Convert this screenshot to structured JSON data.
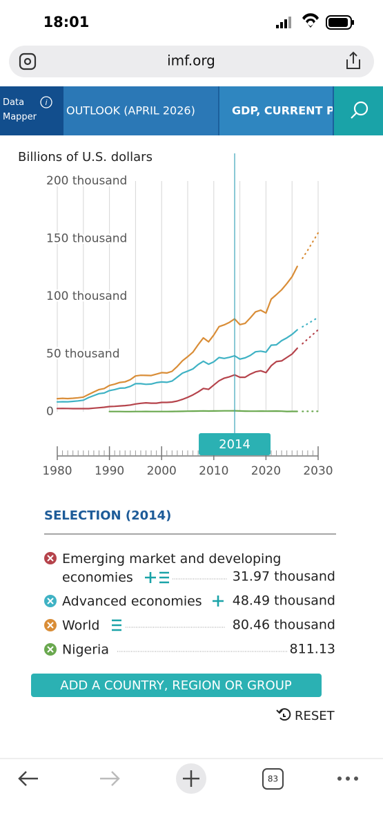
{
  "status_bar": {
    "time": "18:01"
  },
  "browser": {
    "url": "imf.org",
    "tab_count": 83
  },
  "nav": {
    "brand": "Data Mapper",
    "tabs": [
      "OUTLOOK (APRIL 2026)",
      "GDP, CURRENT P"
    ]
  },
  "chart_data": {
    "type": "line",
    "y_label": "Billions of U.S. dollars",
    "x": [
      1980,
      1981,
      1982,
      1983,
      1984,
      1985,
      1986,
      1987,
      1988,
      1989,
      1990,
      1991,
      1992,
      1993,
      1994,
      1995,
      1996,
      1997,
      1998,
      1999,
      2000,
      2001,
      2002,
      2003,
      2004,
      2005,
      2006,
      2007,
      2008,
      2009,
      2010,
      2011,
      2012,
      2013,
      2014,
      2015,
      2016,
      2017,
      2018,
      2019,
      2020,
      2021,
      2022,
      2023,
      2024,
      2025,
      2026,
      2027,
      2028,
      2029,
      2030
    ],
    "series": [
      {
        "name": "Emerging market and developing economies",
        "color": "#b5434b",
        "values": [
          2800,
          2900,
          2800,
          2700,
          2700,
          2700,
          2700,
          3100,
          3500,
          3900,
          4500,
          4700,
          5000,
          5300,
          5800,
          6700,
          7300,
          7700,
          7400,
          7400,
          8100,
          8100,
          8400,
          9300,
          10700,
          12500,
          14600,
          17200,
          20200,
          19400,
          23200,
          26800,
          29100,
          30300,
          31970,
          29900,
          29900,
          32600,
          34600,
          35500,
          33900,
          39900,
          43500,
          44100,
          47000,
          50000,
          55000,
          59000,
          63000,
          67000,
          71000
        ]
      },
      {
        "name": "Advanced economies",
        "color": "#3fb2c4",
        "values": [
          8500,
          8700,
          8600,
          9000,
          9400,
          10000,
          12300,
          14000,
          15700,
          16200,
          18300,
          19200,
          20400,
          20600,
          22000,
          24300,
          24300,
          23800,
          24000,
          25200,
          25800,
          25500,
          26600,
          30000,
          33500,
          35200,
          37100,
          40900,
          43800,
          41200,
          43300,
          47000,
          46200,
          47200,
          48490,
          45600,
          46700,
          48800,
          52000,
          52500,
          51600,
          57700,
          58000,
          61600,
          64000,
          67000,
          71000,
          73600,
          76300,
          79000,
          81800
        ]
      },
      {
        "name": "World",
        "color": "#d98d37",
        "values": [
          11300,
          11600,
          11400,
          11700,
          12100,
          12700,
          15000,
          17100,
          19200,
          20100,
          22800,
          23900,
          25400,
          25900,
          27800,
          31000,
          31600,
          31500,
          31400,
          32600,
          33900,
          33600,
          35000,
          39300,
          44200,
          47700,
          51700,
          58100,
          64000,
          60600,
          66500,
          73800,
          75300,
          77500,
          80460,
          75500,
          76600,
          81400,
          86600,
          88000,
          85500,
          97600,
          101500,
          105700,
          111000,
          117000,
          126000,
          133000,
          140000,
          147500,
          155000
        ]
      },
      {
        "name": "Nigeria",
        "color": "#6aa84f",
        "values": [
          null,
          null,
          null,
          null,
          null,
          null,
          null,
          null,
          null,
          null,
          160,
          150,
          150,
          100,
          100,
          170,
          200,
          210,
          200,
          180,
          180,
          190,
          240,
          270,
          350,
          460,
          550,
          610,
          710,
          580,
          640,
          700,
          760,
          800,
          811.13,
          680,
          530,
          460,
          490,
          520,
          490,
          540,
          580,
          460,
          250,
          290,
          300,
          310,
          330,
          350,
          370
        ]
      }
    ],
    "projection_from": 2026,
    "xlim": [
      1980,
      2030
    ],
    "xticks": [
      1980,
      1990,
      2000,
      2010,
      2020,
      2030
    ],
    "ylim": [
      0,
      200000
    ],
    "yticks": [
      0,
      {
        "value": 50000,
        "label": "50 thousand"
      },
      {
        "value": 100000,
        "label": "100 thousand"
      },
      {
        "value": 150000,
        "label": "150 thousand"
      },
      {
        "value": 200000,
        "label": "200 thousand"
      }
    ],
    "grid": "x",
    "selected_x": 2014,
    "selection": {
      "title": "SELECTION (2014)",
      "value_labels": [
        "31.97 thousand",
        "48.49 thousand",
        "80.46 thousand",
        "811.13"
      ]
    }
  },
  "buttons": {
    "add": "ADD A COUNTRY, REGION OR GROUP",
    "reset": "RESET"
  }
}
